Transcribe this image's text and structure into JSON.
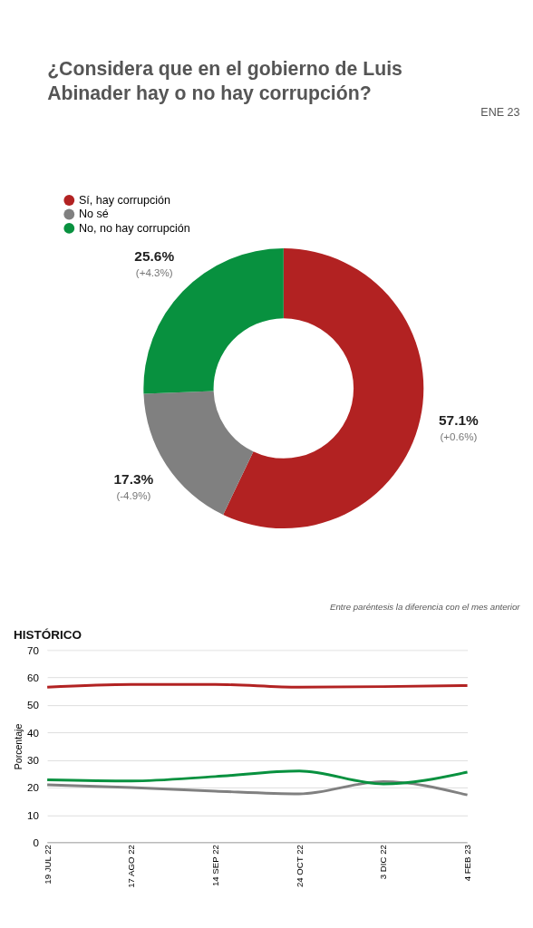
{
  "chart_data": [
    {
      "type": "donut",
      "title": "¿Considera que en el gobierno de Luis Abinader hay o no hay corrupción?",
      "categories": [
        "Sí, hay corrupción",
        "No sé",
        "No, no hay corrupción"
      ],
      "values": [
        57.1,
        17.3,
        25.6
      ],
      "colors": [
        "#b22222",
        "#808080",
        "#08913f"
      ],
      "value_labels": [
        "57.1%",
        "17.3%",
        "25.6%"
      ],
      "legend": "top left",
      "annotations": [
        {
          "text": "(+0.6%)",
          "x": "Sí, hay corrupción"
        },
        {
          "text": "(-4.9%)",
          "x": "No sé"
        },
        {
          "text": "(+4.3%)",
          "x": "No, no hay corrupción"
        },
        "ENE 23",
        "Entre paréntesis la diferencia con el mes anterior"
      ]
    },
    {
      "type": "line",
      "title": "HISTÓRICO",
      "ylabel": "Porcentaje",
      "categories": [
        "19 JUL 22",
        "17 AGO 22",
        "14 SEP 22",
        "24 OCT 22",
        "3 DIC 22",
        "4 FEB 23"
      ],
      "series": [
        {
          "color": "#b22222",
          "values": [
            56.5,
            57.5,
            57.5,
            56.5,
            56.7,
            57.1
          ]
        },
        {
          "color": "#808080",
          "values": [
            21,
            20,
            18.7,
            17.7,
            22.2,
            17.3
          ]
        },
        {
          "color": "#08913f",
          "values": [
            22.8,
            22.4,
            24,
            26,
            21.3,
            25.6
          ]
        }
      ],
      "ylim": [
        0,
        70
      ],
      "yticks": [
        0,
        10,
        20,
        30,
        40,
        50,
        60,
        70
      ],
      "grid": "y"
    }
  ]
}
